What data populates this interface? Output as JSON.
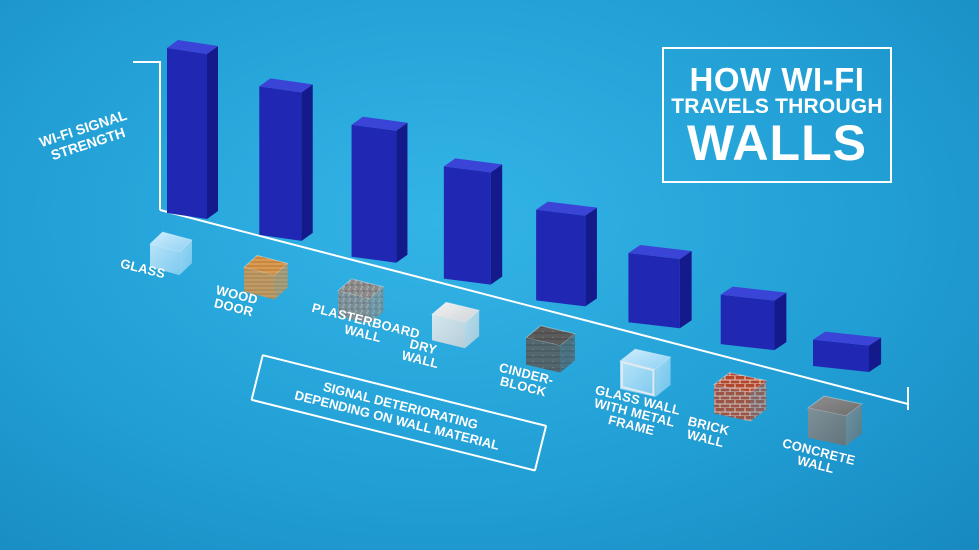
{
  "title": {
    "line1": "HOW WI-FI",
    "line2": "TRAVELS THROUGH",
    "line3": "WALLS"
  },
  "annotation": "SIGNAL DETERIORATING\nDEPENDING ON WALL MATERIAL",
  "colors": {
    "background": "#22a0d6",
    "bar_front": "#2027b3",
    "bar_side": "#141a8c",
    "bar_top": "#3a44d6"
  },
  "chart_data": {
    "type": "bar",
    "ylabel": "WI-FI SIGNAL\nSTRENGTH",
    "xlabel": "",
    "categories": [
      "GLASS",
      "WOOD DOOR",
      "PLASTERBOARD WALL",
      "DRY WALL",
      "CINDER-BLOCK",
      "GLASS WALL WITH METAL FRAME",
      "BRICK WALL",
      "CONCRETE WALL"
    ],
    "category_labels": [
      "GLASS",
      "WOOD\nDOOR",
      "PLASTERBOARD\nWALL",
      "DRY\nWALL",
      "CINDER-\nBLOCK",
      "GLASS WALL\nWITH METAL\nFRAME",
      "BRICK\nWALL",
      "CONCRETE\nWALL"
    ],
    "material_icons": [
      "glass-icon",
      "wood-icon",
      "plasterboard-icon",
      "drywall-icon",
      "cinderblock-icon",
      "glass-metal-frame-icon",
      "brick-icon",
      "concrete-icon"
    ],
    "values": [
      100,
      90,
      80,
      68,
      55,
      42,
      30,
      16
    ],
    "ylim": [
      0,
      100
    ],
    "grid": false,
    "legend": "none"
  }
}
